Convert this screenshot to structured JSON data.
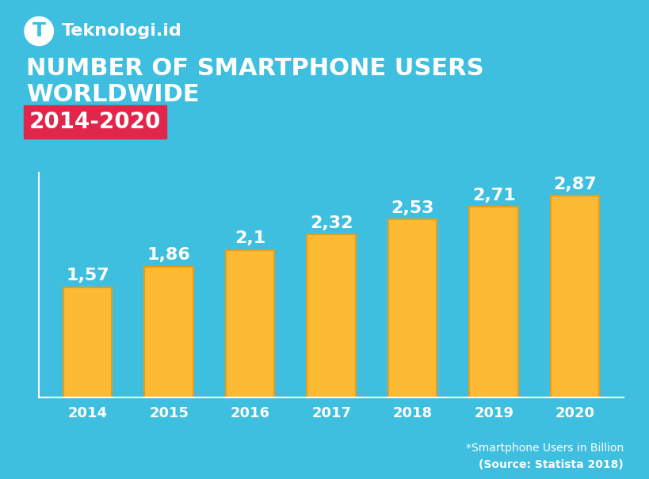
{
  "chart_data": {
    "type": "bar",
    "logo": "T",
    "brand": "Teknologi.id",
    "title": "NUMBER OF SMARTPHONE USERS WORLDWIDE",
    "subtitle": "2014-2020",
    "categories": [
      "2014",
      "2015",
      "2016",
      "2017",
      "2018",
      "2019",
      "2020"
    ],
    "values": [
      1.57,
      1.86,
      2.1,
      2.32,
      2.53,
      2.71,
      2.87
    ],
    "value_labels": [
      "1,57",
      "1,86",
      "2,1",
      "2,32",
      "2,53",
      "2,71",
      "2,87"
    ],
    "color": "#fbb934",
    "ylim": [
      0,
      3.2
    ],
    "data_labels": true,
    "tick_labels": "x",
    "grid": false,
    "annotations": [
      "*Smartphone Users in Billion",
      "(Source: Statista 2018)"
    ]
  }
}
